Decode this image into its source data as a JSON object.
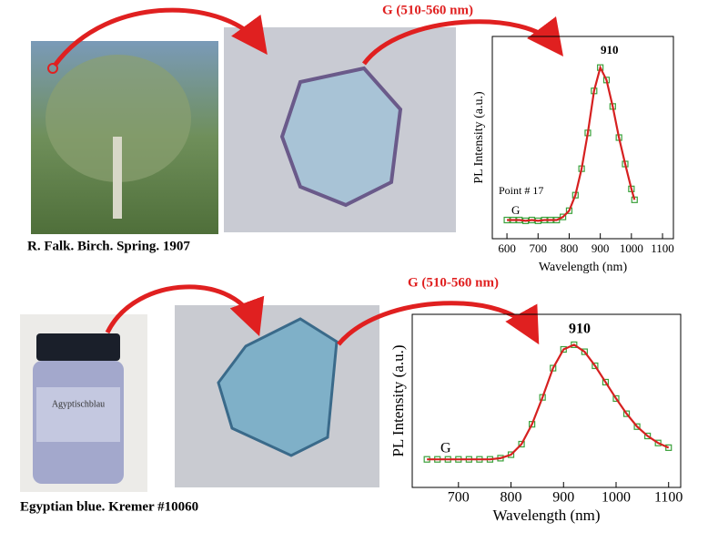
{
  "panels": [
    {
      "caption": "R. Falk. Birch. Spring. 1907"
    },
    {
      "caption": "Egyptian blue. Kremer #10060"
    }
  ],
  "arrow_labels": [
    "G (510-560 nm)",
    "G (510-560 nm)"
  ],
  "jar_label": "Agyptischblau",
  "chart_data": [
    {
      "type": "line",
      "xlabel": "Wavelength (nm)",
      "ylabel": "PL Intensity (a.u.)",
      "annotations": [
        "910",
        "G",
        "Point # 17"
      ],
      "x": [
        600,
        620,
        640,
        660,
        680,
        700,
        720,
        740,
        760,
        780,
        800,
        820,
        840,
        860,
        880,
        900,
        920,
        940,
        960,
        980,
        1000,
        1010
      ],
      "series": [
        {
          "color": "#d62020",
          "marker_color": "#3aa03a",
          "values": [
            0.02,
            0.02,
            0.02,
            0.015,
            0.02,
            0.015,
            0.02,
            0.02,
            0.02,
            0.04,
            0.08,
            0.18,
            0.35,
            0.58,
            0.85,
            1.0,
            0.92,
            0.75,
            0.55,
            0.38,
            0.22,
            0.15
          ]
        }
      ],
      "xlim": [
        553,
        1135
      ],
      "ylim": [
        -0.1,
        1.2
      ],
      "xticks": [
        600,
        700,
        800,
        900,
        1000,
        1100
      ]
    },
    {
      "type": "line",
      "xlabel": "Wavelength (nm)",
      "ylabel": "PL Intensity (a.u.)",
      "annotations": [
        "910",
        "G"
      ],
      "x": [
        640,
        660,
        680,
        700,
        720,
        740,
        760,
        780,
        800,
        820,
        840,
        860,
        880,
        900,
        920,
        940,
        960,
        980,
        1000,
        1020,
        1040,
        1060,
        1080,
        1100
      ],
      "series": [
        {
          "color": "#d62020",
          "marker_color": "#3aa03a",
          "values": [
            0.02,
            0.02,
            0.02,
            0.02,
            0.02,
            0.02,
            0.02,
            0.03,
            0.06,
            0.15,
            0.32,
            0.55,
            0.8,
            0.96,
            1.0,
            0.94,
            0.82,
            0.68,
            0.54,
            0.41,
            0.3,
            0.22,
            0.16,
            0.12
          ]
        }
      ],
      "xlim": [
        612,
        1123
      ],
      "ylim": [
        -0.22,
        1.26
      ],
      "xticks": [
        700,
        800,
        900,
        1000,
        1100
      ]
    }
  ]
}
